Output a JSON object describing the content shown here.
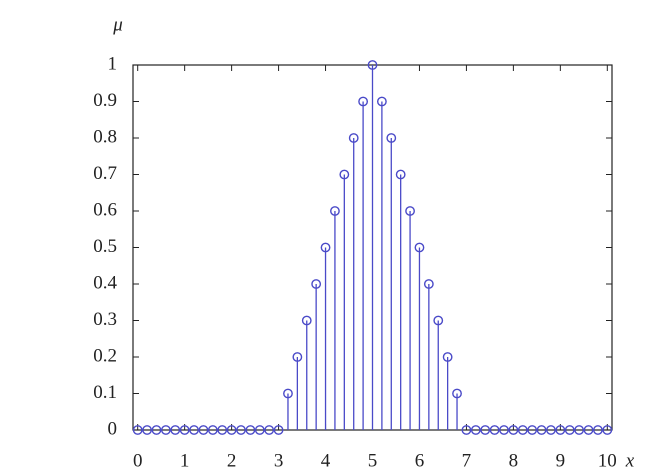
{
  "chart_data": {
    "type": "stem",
    "ylabel": "μ",
    "xlabel": "x",
    "x": [
      0,
      0.2,
      0.4,
      0.6,
      0.8,
      1,
      1.2,
      1.4,
      1.6,
      1.8,
      2,
      2.2,
      2.4,
      2.6,
      2.8,
      3,
      3.2,
      3.4,
      3.6,
      3.8,
      4,
      4.2,
      4.4,
      4.6,
      4.8,
      5,
      5.2,
      5.4,
      5.6,
      5.8,
      6,
      6.2,
      6.4,
      6.6,
      6.8,
      7,
      7.2,
      7.4,
      7.6,
      7.8,
      8,
      8.2,
      8.4,
      8.6,
      8.8,
      9,
      9.2,
      9.4,
      9.6,
      9.8,
      10
    ],
    "values": [
      0,
      0,
      0,
      0,
      0,
      0,
      0,
      0,
      0,
      0,
      0,
      0,
      0,
      0,
      0,
      0,
      0.1,
      0.2,
      0.3,
      0.4,
      0.5,
      0.6,
      0.7,
      0.8,
      0.9,
      1,
      0.9,
      0.8,
      0.7,
      0.6,
      0.5,
      0.4,
      0.3,
      0.2,
      0.1,
      0,
      0,
      0,
      0,
      0,
      0,
      0,
      0,
      0,
      0,
      0,
      0,
      0,
      0,
      0,
      0
    ],
    "color": "#4a4ac8",
    "xlim": [
      -0.1,
      10.1
    ],
    "ylim": [
      0,
      1
    ],
    "xticks": [
      0,
      1,
      2,
      3,
      4,
      5,
      6,
      7,
      8,
      9,
      10
    ],
    "yticks": [
      0,
      0.1,
      0.2,
      0.3,
      0.4,
      0.5,
      0.6,
      0.7,
      0.8,
      0.9,
      1
    ]
  }
}
